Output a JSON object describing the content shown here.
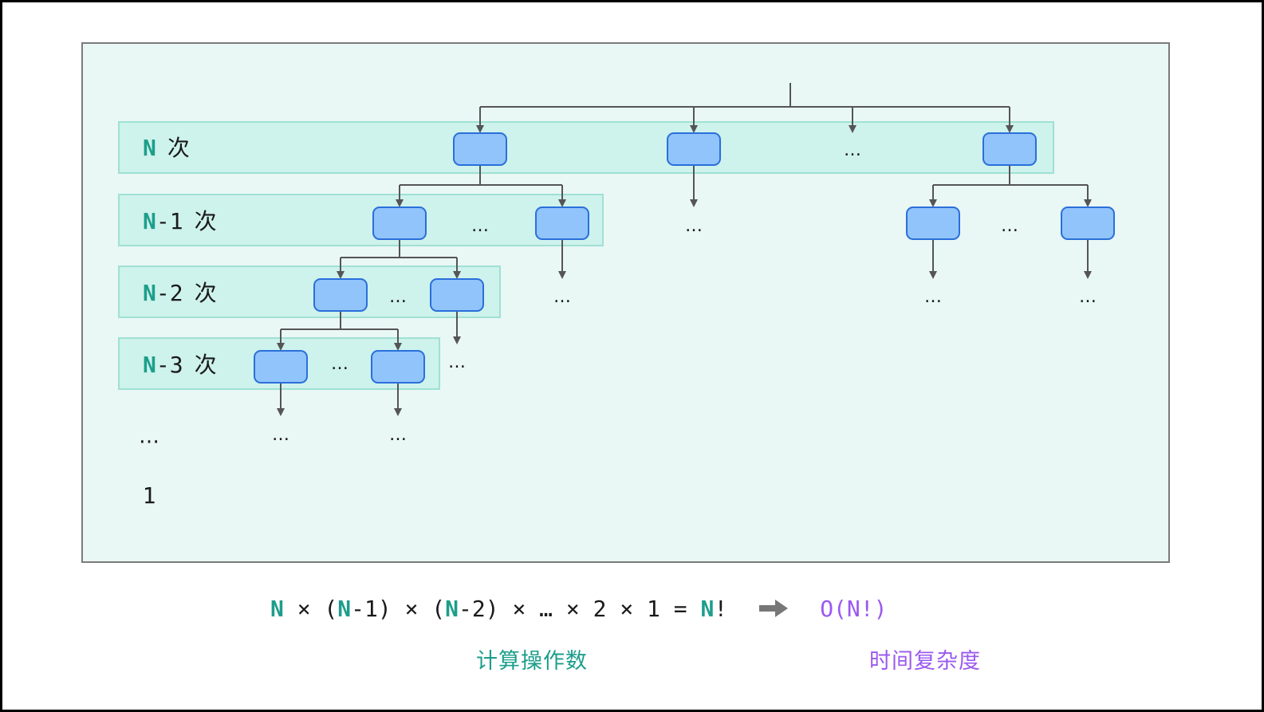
{
  "colors": {
    "accent_teal": "#1d9e8b",
    "accent_purple": "#9b59f0",
    "panel_bg": "#e9f7f5",
    "panel_border": "#7a7a7a",
    "level_bg": "#cef2ec",
    "level_border": "#9fe1d4",
    "node_fill": "#91c4fb",
    "node_border": "#2a6fdb",
    "edge": "#555555",
    "text": "#1a1a1a"
  },
  "levels": [
    {
      "head": "N",
      "rest": "",
      "unit": "次"
    },
    {
      "head": "N",
      "rest": "-1",
      "unit": "次"
    },
    {
      "head": "N",
      "rest": "-2",
      "unit": "次"
    },
    {
      "head": "N",
      "rest": "-3",
      "unit": "次"
    }
  ],
  "tail_labels": {
    "ellipsis": "…",
    "one": "1"
  },
  "ellipsis": "…",
  "formula": {
    "tokens": [
      {
        "t": "N",
        "hl": true
      },
      {
        "t": " × (",
        "hl": false
      },
      {
        "t": "N",
        "hl": true
      },
      {
        "t": "-1) × (",
        "hl": false
      },
      {
        "t": "N",
        "hl": true
      },
      {
        "t": "-2) × … × 2 × 1 = ",
        "hl": false
      },
      {
        "t": "N",
        "hl": true
      },
      {
        "t": "!",
        "hl": false
      }
    ],
    "arrow_icon": "right-arrow-icon",
    "complexity": "O(N!)"
  },
  "captions": {
    "operations": "计算操作数",
    "time_complexity": "时间复杂度"
  }
}
